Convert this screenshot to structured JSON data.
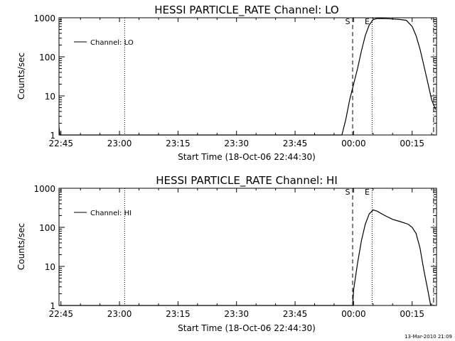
{
  "chart_data": [
    {
      "type": "line",
      "title": "HESSI PARTICLE_RATE Channel: LO",
      "xlabel": "Start Time (18-Oct-06 22:44:30)",
      "ylabel": "Counts/sec",
      "y_scale": "log",
      "ylim": [
        1,
        1000
      ],
      "xlim": [
        "22:44:30",
        "00:21:15"
      ],
      "x_ticks": [
        "22:45",
        "23:00",
        "23:15",
        "23:30",
        "23:45",
        "00:00",
        "00:15"
      ],
      "y_ticks": [
        "1",
        "10",
        "100",
        "1000"
      ],
      "legend": {
        "position": "top-left"
      },
      "series": [
        {
          "name": "Channel: LO",
          "points": [
            [
              "22:44:30",
              1.6
            ],
            [
              "22:44:45",
              1.0
            ],
            [
              "23:57:00",
              1.0
            ],
            [
              "23:58:00",
              2.5
            ],
            [
              "23:59:00",
              8
            ],
            [
              "00:00:00",
              20
            ],
            [
              "00:01:00",
              50
            ],
            [
              "00:02:00",
              140
            ],
            [
              "00:03:00",
              350
            ],
            [
              "00:04:00",
              650
            ],
            [
              "00:05:00",
              900
            ],
            [
              "00:06:00",
              960
            ],
            [
              "00:08:00",
              950
            ],
            [
              "00:10:00",
              930
            ],
            [
              "00:12:00",
              900
            ],
            [
              "00:13:30",
              860
            ],
            [
              "00:15:00",
              600
            ],
            [
              "00:16:00",
              350
            ],
            [
              "00:17:00",
              160
            ],
            [
              "00:18:00",
              60
            ],
            [
              "00:19:00",
              22
            ],
            [
              "00:20:00",
              8
            ],
            [
              "00:21:00",
              4.5
            ]
          ]
        }
      ],
      "markers": [
        {
          "time": "23:01:20",
          "label": "",
          "style": "dotted"
        },
        {
          "time": "23:59:45",
          "label": "S",
          "style": "dashed"
        },
        {
          "time": "00:04:45",
          "label": "E",
          "style": "dotted"
        },
        {
          "time": "00:20:30",
          "label": "",
          "style": "dashdot"
        }
      ]
    },
    {
      "type": "line",
      "title": "HESSI PARTICLE_RATE Channel: HI",
      "xlabel": "Start Time (18-Oct-06 22:44:30)",
      "ylabel": "Counts/sec",
      "y_scale": "log",
      "ylim": [
        1,
        1000
      ],
      "xlim": [
        "22:44:30",
        "00:21:15"
      ],
      "x_ticks": [
        "22:45",
        "23:00",
        "23:15",
        "23:30",
        "23:45",
        "00:00",
        "00:15"
      ],
      "y_ticks": [
        "1",
        "10",
        "100",
        "1000"
      ],
      "legend": {
        "position": "top-left"
      },
      "series": [
        {
          "name": "Channel: HI",
          "points": [
            [
              "22:44:30",
              1.0
            ],
            [
              "22:44:45",
              1.0
            ],
            [
              "23:59:45",
              1.0
            ],
            [
              "00:00:00",
              2.5
            ],
            [
              "00:01:00",
              12
            ],
            [
              "00:02:00",
              45
            ],
            [
              "00:03:00",
              120
            ],
            [
              "00:04:00",
              220
            ],
            [
              "00:05:00",
              280
            ],
            [
              "00:06:00",
              260
            ],
            [
              "00:08:00",
              200
            ],
            [
              "00:10:00",
              160
            ],
            [
              "00:12:00",
              140
            ],
            [
              "00:14:00",
              120
            ],
            [
              "00:15:00",
              100
            ],
            [
              "00:16:00",
              70
            ],
            [
              "00:17:00",
              30
            ],
            [
              "00:18:00",
              8
            ],
            [
              "00:19:00",
              2.5
            ],
            [
              "00:19:45",
              1.0
            ]
          ]
        }
      ],
      "markers": [
        {
          "time": "23:01:20",
          "label": "",
          "style": "dotted"
        },
        {
          "time": "23:59:45",
          "label": "S",
          "style": "dashed"
        },
        {
          "time": "00:04:45",
          "label": "E",
          "style": "dotted"
        },
        {
          "time": "00:20:30",
          "label": "",
          "style": "dashdot"
        }
      ]
    }
  ],
  "timestamp": "13-Mar-2010 21:09"
}
